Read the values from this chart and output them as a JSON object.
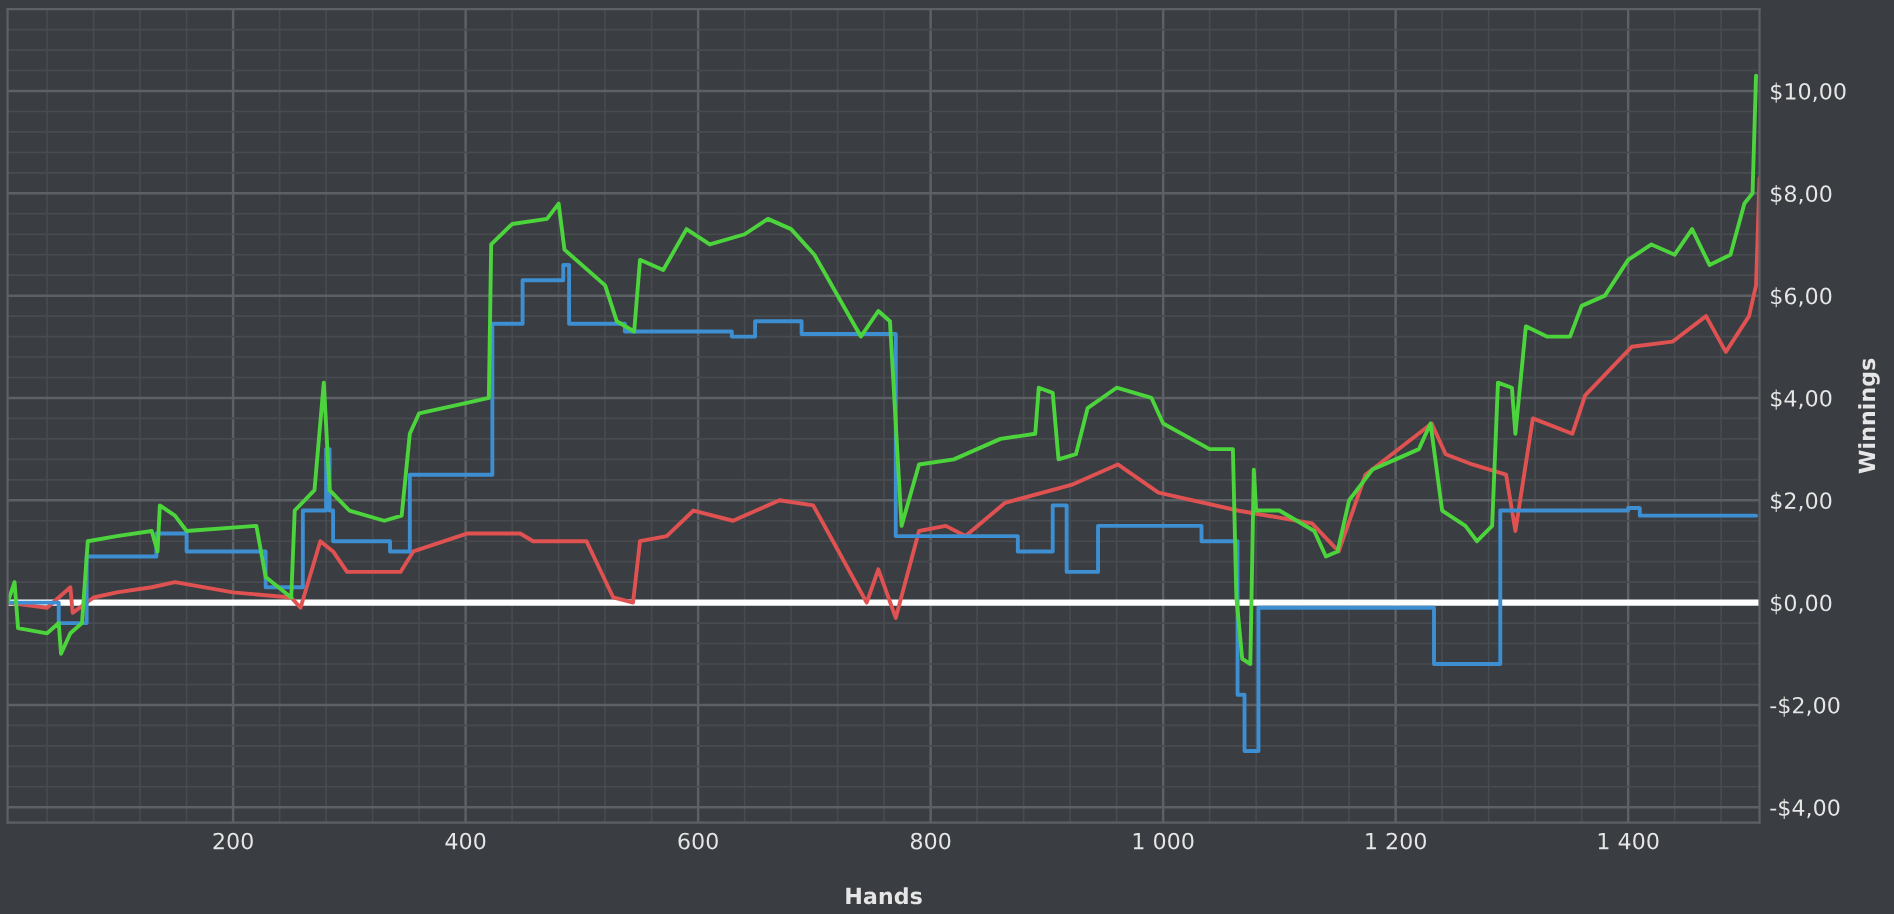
{
  "chart_data": {
    "type": "line",
    "xlabel": "Hands",
    "ylabel": "Winnings",
    "xlim": [
      6,
      1513
    ],
    "ylim": [
      -4.3,
      11.6
    ],
    "xticks": [
      200,
      400,
      600,
      800,
      {
        "value": 1000,
        "label": "1 000"
      },
      {
        "value": 1200,
        "label": "1 200"
      },
      {
        "value": 1400,
        "label": "1 400"
      }
    ],
    "yticks": [
      {
        "value": -4,
        "label": "-$4,00"
      },
      {
        "value": -2,
        "label": "-$2,00"
      },
      {
        "value": 0,
        "label": "$0,00"
      },
      {
        "value": 2,
        "label": "$2,00"
      },
      {
        "value": 4,
        "label": "$4,00"
      },
      {
        "value": 6,
        "label": "$6,00"
      },
      {
        "value": 8,
        "label": "$8,00"
      },
      {
        "value": 10,
        "label": "$10,00"
      }
    ],
    "grid": true,
    "ref_lines": [
      {
        "axis": "y",
        "value": 0,
        "color": "#ffffff"
      }
    ],
    "series": [
      {
        "color": "#e05252",
        "x": [
          6,
          40,
          60,
          62,
          80,
          100,
          130,
          150,
          200,
          250,
          258,
          275,
          286,
          298,
          344,
          355,
          401,
          447,
          458,
          504,
          527,
          544,
          550,
          573,
          596,
          630,
          670,
          699,
          716,
          745,
          755,
          770,
          790,
          813,
          830,
          864,
          921,
          961,
          996,
          1064,
          1128,
          1151,
          1174,
          1231,
          1243,
          1266,
          1295,
          1303,
          1318,
          1352,
          1363,
          1403,
          1438,
          1467,
          1484,
          1504,
          1510,
          1513
        ],
        "values": [
          0,
          -0.1,
          0.3,
          -0.2,
          0.1,
          0.2,
          0.3,
          0.4,
          0.2,
          0.1,
          -0.1,
          1.2,
          1.0,
          0.6,
          0.6,
          1.0,
          1.35,
          1.35,
          1.2,
          1.2,
          0.1,
          0,
          1.2,
          1.3,
          1.8,
          1.6,
          2.0,
          1.9,
          1.2,
          0,
          0.65,
          -0.3,
          1.4,
          1.5,
          1.3,
          1.95,
          2.3,
          2.7,
          2.15,
          1.8,
          1.55,
          1.0,
          2.5,
          3.5,
          2.9,
          2.7,
          2.5,
          1.4,
          3.6,
          3.3,
          4.05,
          5.0,
          5.1,
          5.6,
          4.9,
          5.6,
          6.2,
          8.3
        ]
      },
      {
        "type": "step",
        "color": "#3d8fd1",
        "x": [
          6,
          50,
          74,
          134,
          160,
          228,
          260,
          280,
          283,
          286,
          335,
          352,
          423,
          449,
          484,
          489,
          537,
          629,
          649,
          689,
          770,
          875,
          905,
          917,
          944,
          1033,
          1064,
          1070,
          1082,
          1233,
          1290,
          1400,
          1410,
          1510
        ],
        "values": [
          0,
          -0.4,
          0.9,
          1.35,
          1.0,
          0.3,
          1.8,
          3.0,
          1.8,
          1.2,
          1.0,
          2.5,
          5.45,
          6.3,
          6.6,
          5.45,
          5.3,
          5.2,
          5.5,
          5.25,
          1.3,
          1.0,
          1.9,
          0.6,
          1.5,
          1.2,
          -1.8,
          -2.9,
          -0.1,
          -1.2,
          1.8,
          1.85,
          1.7,
          1.7
        ]
      },
      {
        "color": "#4cd43c",
        "x": [
          6,
          12,
          15,
          40,
          50,
          52,
          60,
          70,
          75,
          100,
          130,
          135,
          137,
          150,
          160,
          220,
          228,
          250,
          253,
          270,
          278,
          283,
          300,
          330,
          345,
          352,
          360,
          400,
          420,
          422,
          440,
          470,
          480,
          485,
          520,
          530,
          545,
          550,
          570,
          590,
          610,
          640,
          660,
          680,
          700,
          740,
          755,
          765,
          775,
          790,
          820,
          860,
          890,
          893,
          905,
          910,
          925,
          935,
          960,
          990,
          1000,
          1040,
          1060,
          1063,
          1068,
          1075,
          1078,
          1080,
          1100,
          1130,
          1140,
          1150,
          1160,
          1180,
          1200,
          1220,
          1230,
          1240,
          1260,
          1270,
          1283,
          1288,
          1300,
          1303,
          1312,
          1330,
          1350,
          1360,
          1380,
          1400,
          1420,
          1440,
          1455,
          1470,
          1488,
          1500,
          1507,
          1510
        ],
        "values": [
          0,
          0.4,
          -0.5,
          -0.6,
          -0.4,
          -1.0,
          -0.6,
          -0.4,
          1.2,
          1.3,
          1.4,
          1.0,
          1.9,
          1.7,
          1.4,
          1.5,
          0.5,
          0.1,
          1.8,
          2.2,
          4.3,
          2.2,
          1.8,
          1.6,
          1.7,
          3.3,
          3.7,
          3.9,
          4.0,
          7.0,
          7.4,
          7.5,
          7.8,
          6.9,
          6.2,
          5.5,
          5.3,
          6.7,
          6.5,
          7.3,
          7.0,
          7.2,
          7.5,
          7.3,
          6.8,
          5.2,
          5.7,
          5.5,
          1.5,
          2.7,
          2.8,
          3.2,
          3.3,
          4.2,
          4.1,
          2.8,
          2.9,
          3.8,
          4.2,
          4.0,
          3.5,
          3.0,
          3.0,
          0.1,
          -1.1,
          -1.2,
          2.6,
          1.8,
          1.8,
          1.4,
          0.9,
          1.0,
          2.0,
          2.6,
          2.8,
          3.0,
          3.5,
          1.8,
          1.5,
          1.2,
          1.5,
          4.3,
          4.2,
          3.3,
          5.4,
          5.2,
          5.2,
          5.8,
          6.0,
          6.7,
          7.0,
          6.8,
          7.3,
          6.6,
          6.8,
          7.8,
          8.0,
          10.3
        ]
      }
    ]
  }
}
